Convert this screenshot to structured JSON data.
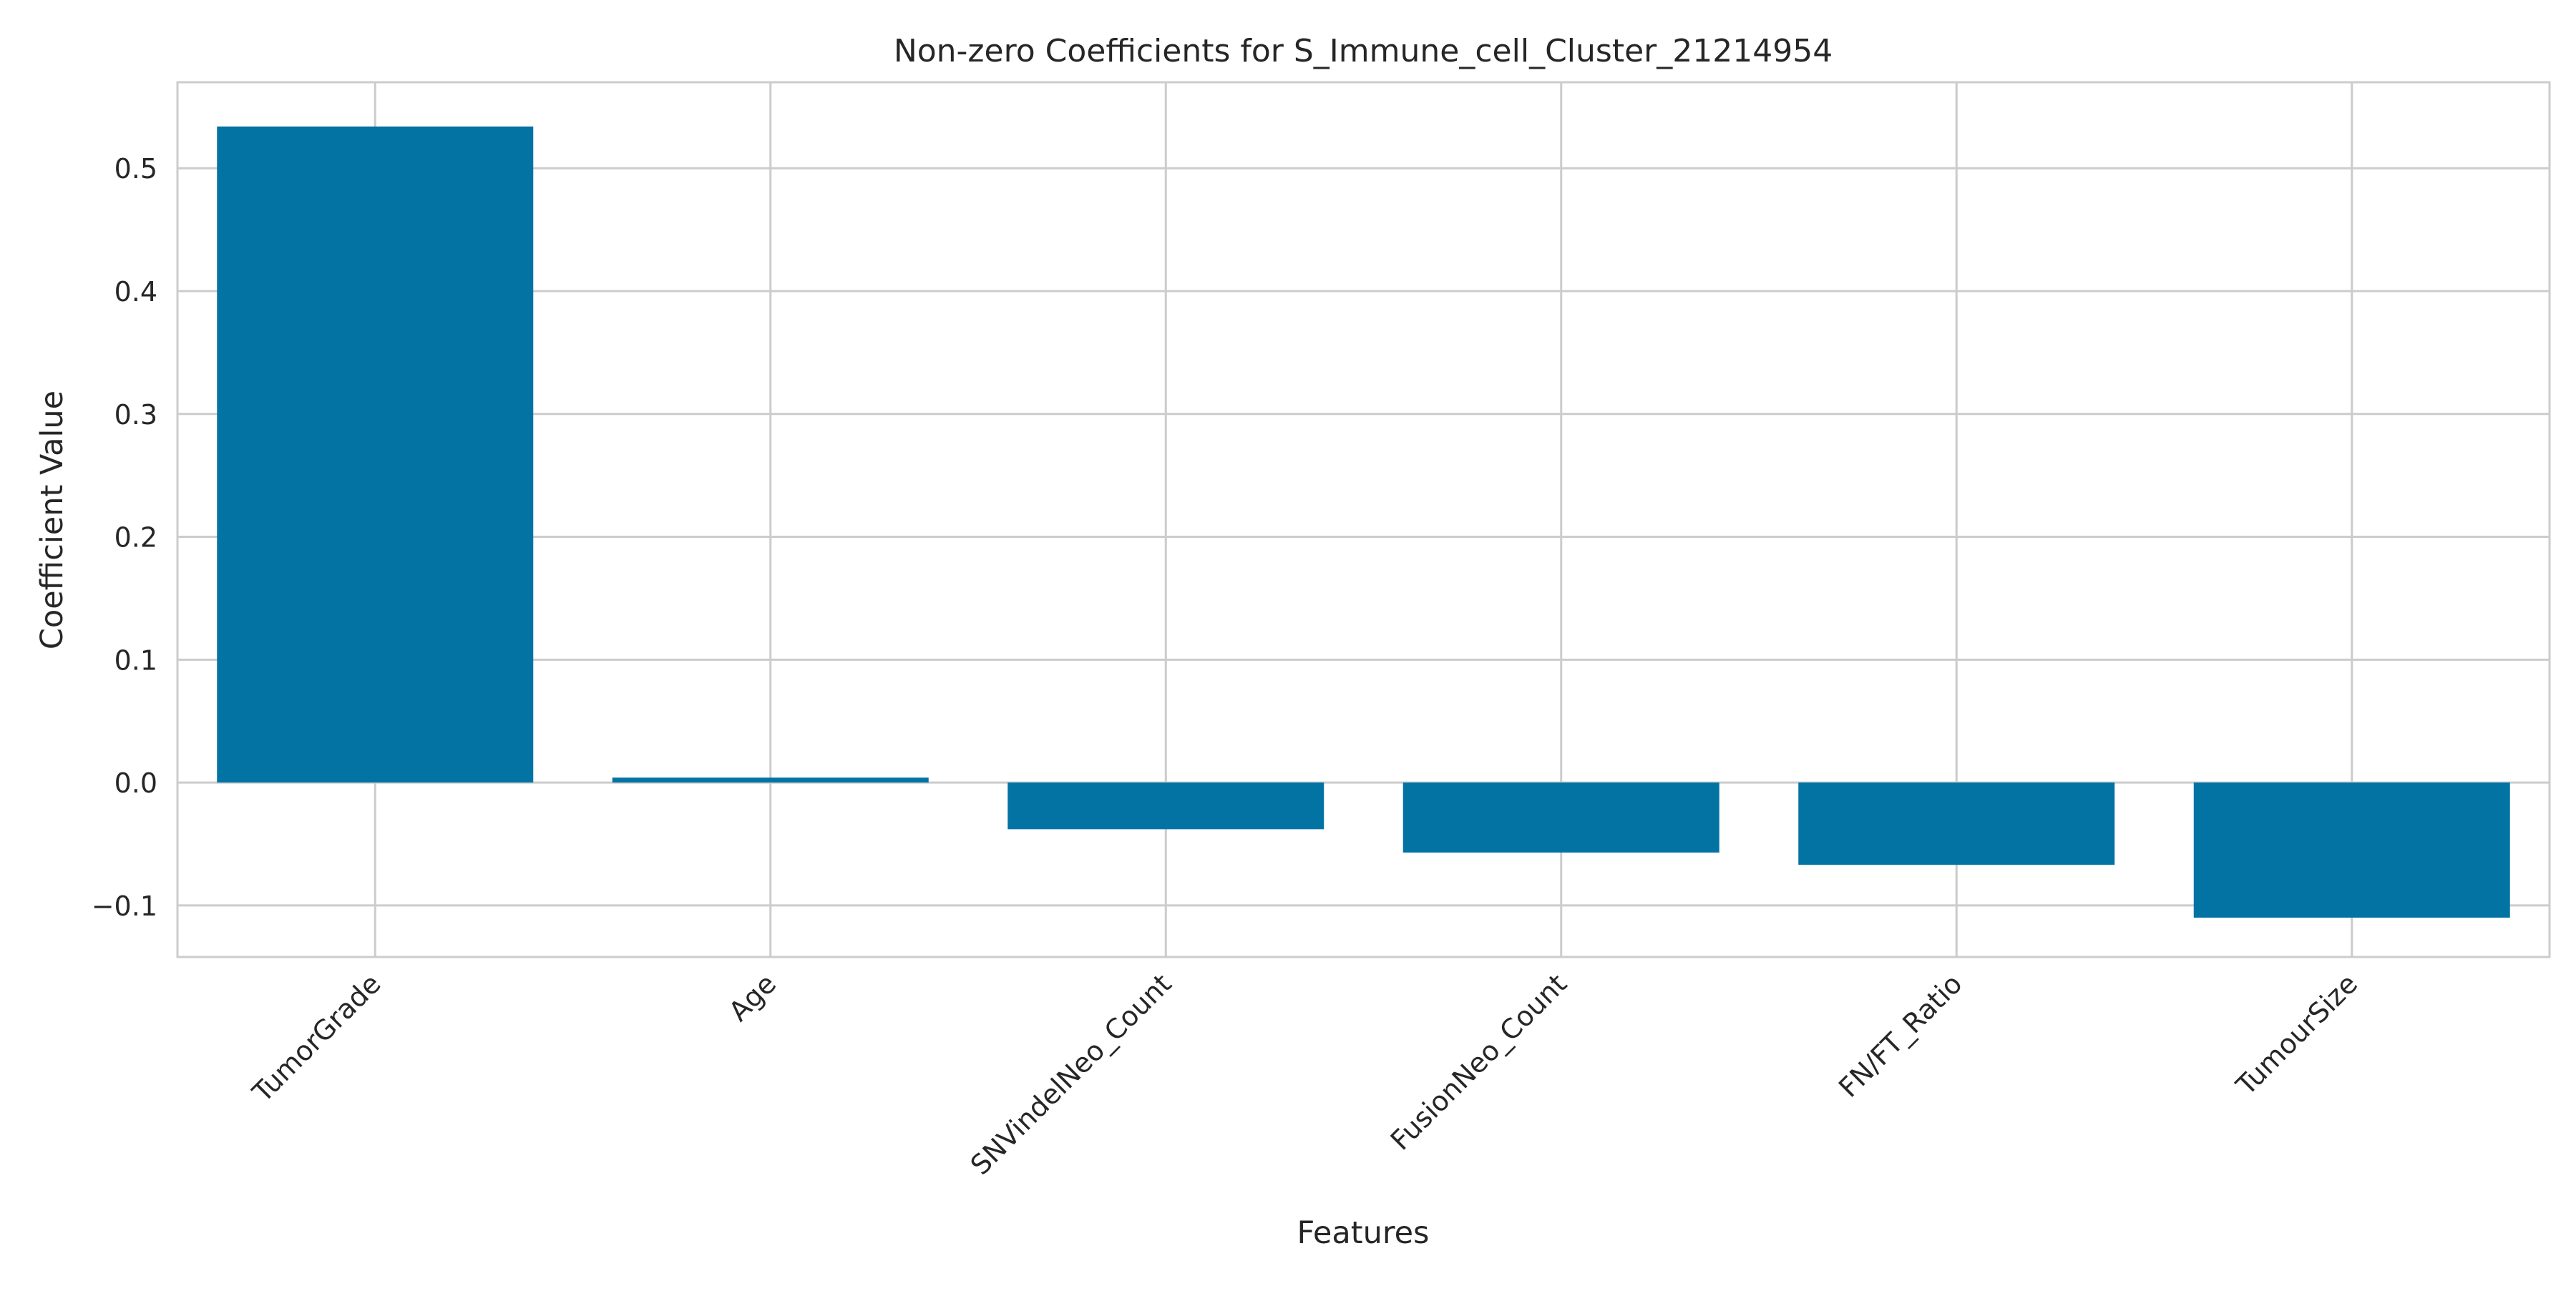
{
  "chart_data": {
    "type": "bar",
    "title": "Non-zero Coefficients for S_Immune_cell_Cluster_21214954",
    "xlabel": "Features",
    "ylabel": "Coefficient Value",
    "categories": [
      "TumorGrade",
      "Age",
      "SNVindelNeo_Count",
      "FusionNeo_Count",
      "FN/FT_Ratio",
      "TumourSize"
    ],
    "values": [
      0.534,
      0.004,
      -0.038,
      -0.057,
      -0.067,
      -0.11
    ],
    "ylim": [
      -0.142,
      0.57
    ],
    "yticks": [
      -0.1,
      0.0,
      0.1,
      0.2,
      0.3,
      0.4,
      0.5
    ],
    "ytick_labels": [
      "−0.1",
      "0.0",
      "0.1",
      "0.2",
      "0.3",
      "0.4",
      "0.5"
    ],
    "grid": true,
    "bar_color": "#0373a4",
    "grid_color": "#cccccc",
    "spine_color": "#cccccc"
  }
}
